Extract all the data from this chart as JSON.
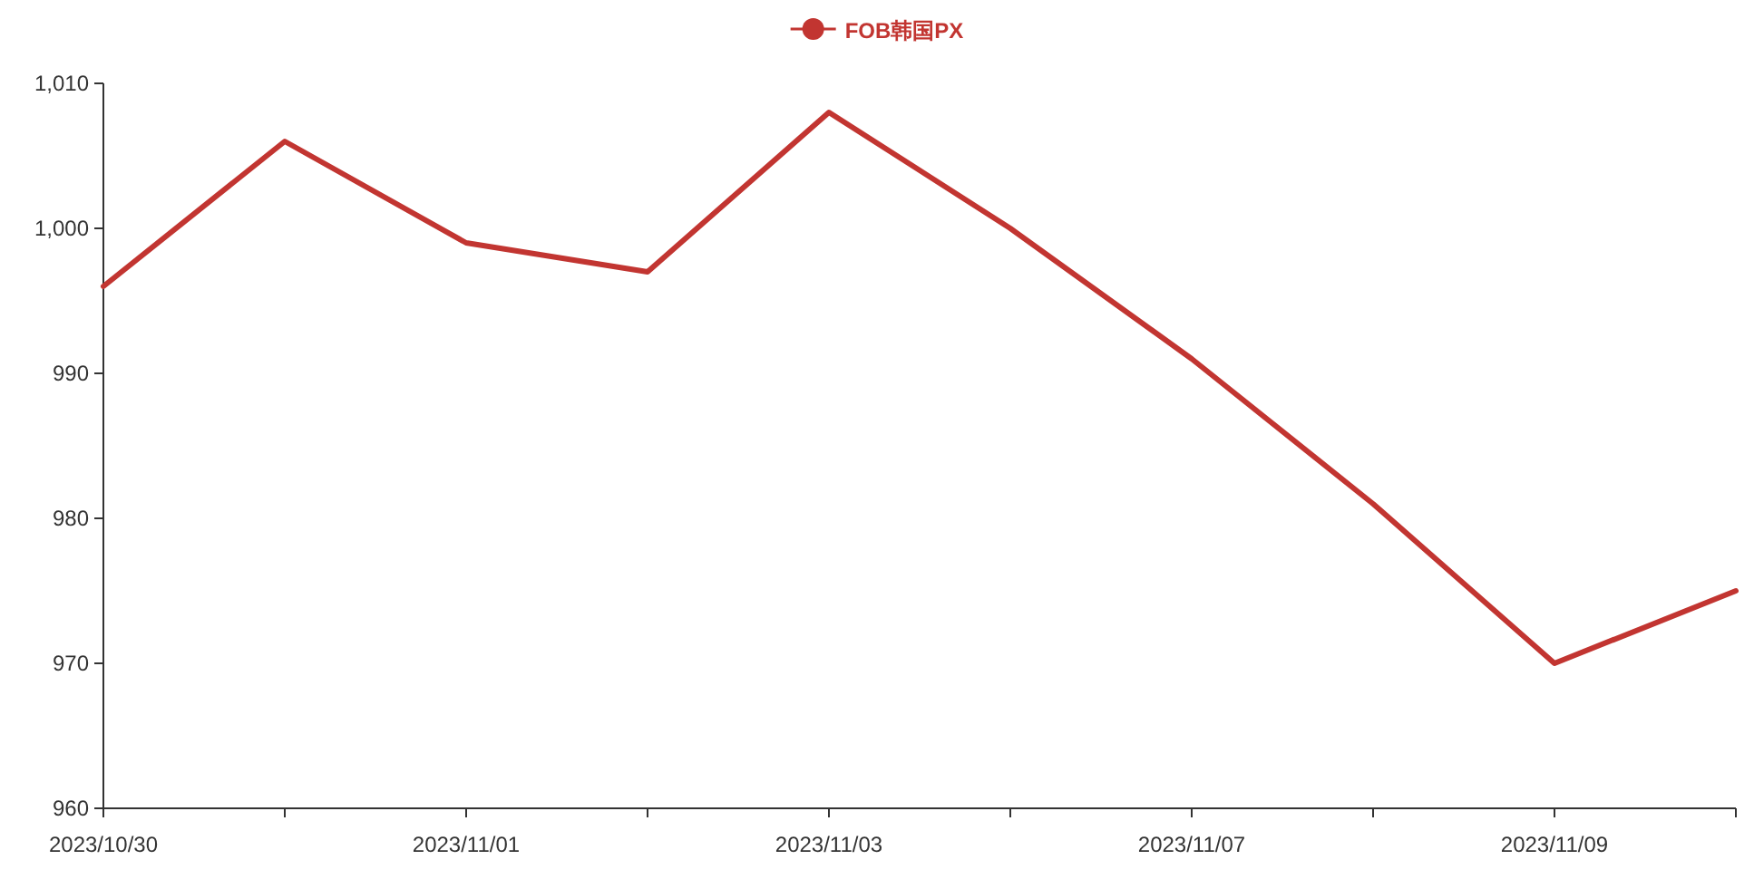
{
  "chart_data": {
    "type": "line",
    "categories": [
      "2023/10/30",
      null,
      "2023/11/01",
      null,
      "2023/11/03",
      null,
      "2023/11/07",
      null,
      "2023/11/09",
      null
    ],
    "series": [
      {
        "name": "FOB韩国PX",
        "color": "#c23531",
        "values": [
          996,
          1006,
          999,
          997,
          1008,
          1000,
          991,
          981,
          970,
          975
        ]
      }
    ],
    "ylim": [
      960,
      1010
    ],
    "yticks": [
      960,
      970,
      980,
      990,
      {
        "value": 1000,
        "label": "1,000"
      },
      {
        "value": 1010,
        "label": "1,010"
      }
    ],
    "legend": "top",
    "grid": false
  }
}
